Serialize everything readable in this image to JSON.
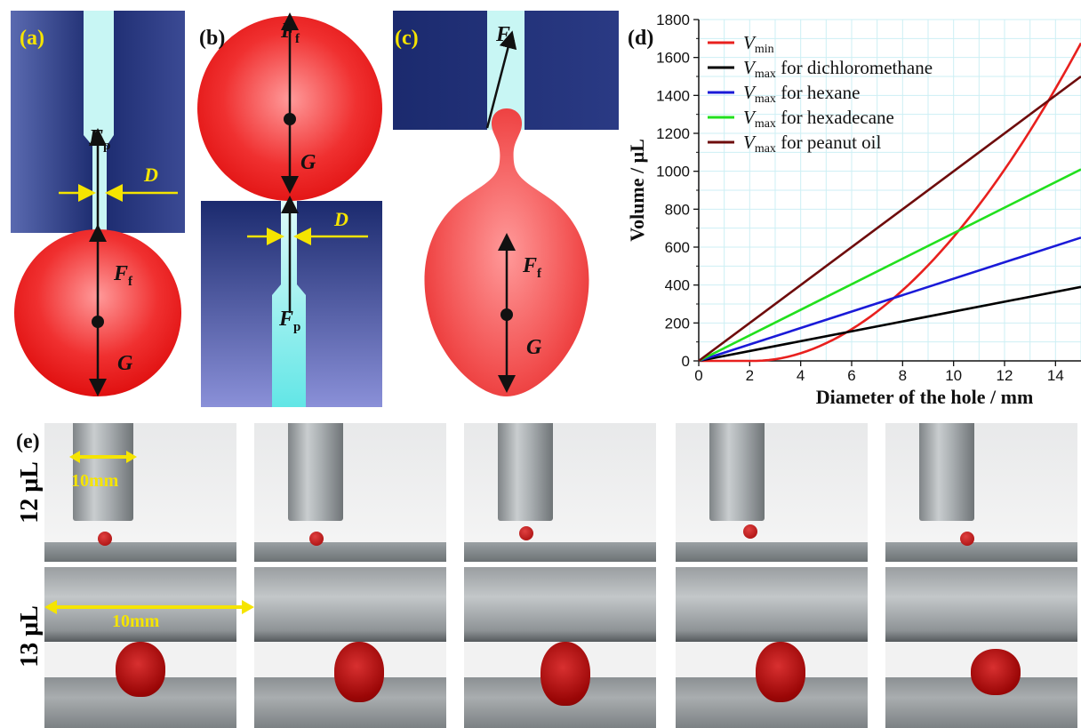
{
  "panels": {
    "a": {
      "label": "(a)",
      "F_p": "F",
      "F_p_sub": "p",
      "F_f": "F",
      "F_f_sub": "f",
      "G": "G",
      "D": "D"
    },
    "b": {
      "label": "(b)",
      "F_f": "F",
      "F_f_sub": "f",
      "G": "G",
      "F_p": "F",
      "F_p_sub": "p",
      "D": "D"
    },
    "c": {
      "label": "(c)",
      "F_s": "F",
      "F_s_sub": "s",
      "F_f": "F",
      "F_f_sub": "f",
      "G": "G"
    },
    "d": {
      "label": "(d)"
    },
    "e": {
      "label": "(e)",
      "row1": "12 μL",
      "row2": "13 μL",
      "scale1": "10mm",
      "scale2": "10mm"
    }
  },
  "colors": {
    "red": "#e8201e",
    "black": "#000000",
    "blue": "#1a1ad8",
    "green": "#22e01e",
    "brown": "#6e0c0c",
    "navy": "#1b2a6e",
    "cyan": "#c8f6f4",
    "yellow": "#f5e400"
  },
  "chart_data": {
    "type": "line",
    "xlabel": "Diameter of the hole / mm",
    "ylabel": "Volume / μL",
    "xlim": [
      0,
      15
    ],
    "ylim": [
      0,
      1800
    ],
    "xticks": [
      0,
      2,
      4,
      6,
      8,
      10,
      12,
      14
    ],
    "yticks": [
      0,
      200,
      400,
      600,
      800,
      1000,
      1200,
      1400,
      1600,
      1800
    ],
    "grid": true,
    "legend_position": "top-left",
    "series": [
      {
        "name": "V",
        "name_sub": "min",
        "suffix": "",
        "color": "#e8201e",
        "kind": "min",
        "x": [
          0,
          1,
          2,
          3,
          4,
          5,
          6,
          7,
          8,
          9,
          10,
          11,
          12,
          13,
          14,
          15
        ],
        "y": [
          0,
          0,
          0,
          2,
          12,
          50,
          120,
          230,
          380,
          560,
          760,
          980,
          1180,
          1390,
          1580,
          1700
        ]
      },
      {
        "name": "V",
        "name_sub": "max",
        "suffix": " for dichloromethane",
        "color": "#000000",
        "x": [
          0,
          15
        ],
        "y": [
          0,
          390
        ]
      },
      {
        "name": "V",
        "name_sub": "max",
        "suffix": " for hexane",
        "color": "#1a1ad8",
        "x": [
          0,
          15
        ],
        "y": [
          0,
          650
        ]
      },
      {
        "name": "V",
        "name_sub": "max",
        "suffix": " for hexadecane",
        "color": "#22e01e",
        "x": [
          0,
          15
        ],
        "y": [
          0,
          1010
        ]
      },
      {
        "name": "V",
        "name_sub": "max",
        "suffix": " for peanut oil",
        "color": "#6e0c0c",
        "x": [
          0,
          15
        ],
        "y": [
          0,
          1500
        ]
      }
    ]
  }
}
